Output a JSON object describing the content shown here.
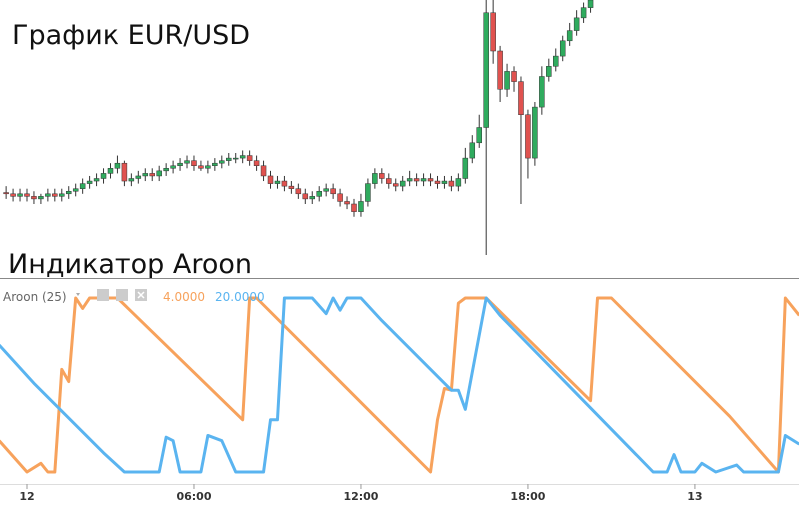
{
  "chart_data": [
    {
      "type": "candlestick",
      "title": "График EUR/USD",
      "up_color": "#2fab5e",
      "down_color": "#e0524f",
      "xlim": [
        -0.97,
        27.74
      ],
      "ylim": [
        0,
        100
      ],
      "x": [
        -0.75,
        -0.5,
        -0.25,
        0,
        0.25,
        0.5,
        0.75,
        1,
        1.25,
        1.5,
        1.75,
        2,
        2.25,
        2.5,
        2.75,
        3,
        3.25,
        3.5,
        3.75,
        4,
        4.25,
        4.5,
        4.75,
        5,
        5.25,
        5.5,
        5.75,
        6,
        6.25,
        6.5,
        6.75,
        7,
        7.25,
        7.5,
        7.75,
        8,
        8.25,
        8.5,
        8.75,
        9,
        9.25,
        9.5,
        9.75,
        10,
        10.25,
        10.5,
        10.75,
        11,
        11.25,
        11.5,
        11.75,
        12,
        12.25,
        12.5,
        12.75,
        13,
        13.25,
        13.5,
        13.75,
        14,
        14.25,
        14.5,
        14.75,
        15,
        15.25,
        15.5,
        15.75,
        16,
        16.25,
        16.5,
        16.75,
        17,
        17.25,
        17.5,
        17.75,
        18,
        18.25,
        18.5,
        18.75,
        19,
        19.25,
        19.5,
        19.75,
        20,
        20.25
      ],
      "open": [
        24.5,
        24,
        23,
        24,
        23,
        22,
        23,
        24,
        23,
        24,
        25,
        26,
        28,
        29,
        30,
        32,
        34,
        36,
        29,
        30,
        31,
        32,
        31,
        33,
        34,
        35,
        36,
        37,
        35,
        34,
        35,
        36,
        37,
        38,
        38,
        39,
        37,
        35,
        31,
        28,
        29,
        27,
        26,
        24,
        22,
        23,
        25,
        26,
        24,
        21,
        20,
        17,
        21,
        28,
        32,
        30,
        28,
        27,
        29,
        30,
        29,
        30,
        29,
        28,
        29,
        27,
        30,
        38,
        44,
        50,
        95,
        80,
        65,
        72,
        68,
        55,
        38,
        58,
        70,
        74,
        78,
        84,
        88,
        93,
        97
      ],
      "high": [
        27,
        26,
        26,
        26,
        25,
        24,
        26,
        26,
        26,
        27,
        28,
        30,
        31,
        32,
        34,
        36,
        39,
        37,
        32,
        33,
        34,
        34,
        35,
        36,
        37,
        38,
        39,
        39,
        37,
        37,
        38,
        39,
        40,
        40,
        41,
        41,
        39,
        37,
        33,
        31,
        31,
        29,
        28,
        26,
        25,
        27,
        28,
        28,
        26,
        23,
        22,
        24,
        30,
        34,
        34,
        32,
        30,
        31,
        33,
        32,
        32,
        32,
        31,
        31,
        31,
        32,
        42,
        47,
        55,
        100,
        100,
        82,
        75,
        74,
        70,
        57,
        60,
        74,
        77,
        81,
        86,
        91,
        96,
        99,
        101
      ],
      "low": [
        22,
        21,
        21,
        21,
        20,
        20,
        21,
        21,
        21,
        22,
        23,
        24,
        26,
        27,
        28,
        30,
        32,
        27,
        27,
        28,
        29,
        29,
        29,
        31,
        32,
        33,
        34,
        33,
        33,
        32,
        33,
        34,
        35,
        36,
        36,
        35,
        33,
        29,
        26,
        26,
        25,
        24,
        22,
        20,
        20,
        21,
        23,
        22,
        19,
        18,
        15,
        15,
        19,
        26,
        28,
        26,
        25,
        25,
        27,
        27,
        27,
        27,
        26,
        26,
        25,
        25,
        28,
        36,
        42,
        0,
        75,
        60,
        62,
        64,
        20,
        30,
        35,
        55,
        68,
        72,
        76,
        82,
        86,
        91,
        95
      ],
      "close": [
        24,
        23,
        24,
        23,
        22,
        23,
        24,
        23,
        24,
        25,
        26,
        28,
        29,
        30,
        32,
        34,
        36,
        29,
        30,
        31,
        32,
        31,
        33,
        34,
        35,
        36,
        37,
        35,
        34,
        35,
        36,
        37,
        38,
        38,
        39,
        37,
        35,
        31,
        28,
        29,
        27,
        26,
        24,
        22,
        23,
        25,
        26,
        24,
        21,
        20,
        17,
        21,
        28,
        32,
        30,
        28,
        27,
        29,
        30,
        29,
        30,
        29,
        28,
        29,
        27,
        30,
        38,
        44,
        50,
        95,
        80,
        65,
        72,
        68,
        55,
        38,
        58,
        70,
        74,
        78,
        84,
        88,
        93,
        97,
        100
      ]
    },
    {
      "type": "line",
      "title": "Индикатор Aroon",
      "indicator_label": "Aroon (25)",
      "xlim": [
        -0.97,
        27.74
      ],
      "ylim": [
        0,
        100
      ],
      "xticks": [
        {
          "value": 0,
          "label": "12"
        },
        {
          "value": 6,
          "label": "06:00"
        },
        {
          "value": 12,
          "label": "12:00"
        },
        {
          "value": 18,
          "label": "18:00"
        },
        {
          "value": 24,
          "label": "13"
        }
      ],
      "series": [
        {
          "label": "4.0000",
          "color": "#f7a25c",
          "x": [
            -1,
            0,
            0.5,
            0.75,
            1,
            1.25,
            1.5,
            1.75,
            2,
            2.25,
            3.25,
            7.75,
            8,
            8.25,
            14.5,
            14.75,
            15,
            15.25,
            15.5,
            15.75,
            16.5,
            20.25,
            20.5,
            21,
            25.25,
            27,
            27.25,
            27.75
          ],
          "values": [
            18,
            0,
            5,
            0,
            0,
            59,
            52,
            100,
            94,
            100,
            100,
            30,
            100,
            100,
            0,
            30,
            48,
            47,
            97,
            100,
            100,
            41,
            100,
            100,
            32,
            0,
            100,
            90
          ]
        },
        {
          "label": "20.0000",
          "color": "#5ab4f0",
          "x": [
            -1,
            0.25,
            2.75,
            3.5,
            4.75,
            5,
            5.25,
            5.5,
            6.25,
            6.5,
            7,
            7.5,
            8.5,
            8.75,
            9,
            9.25,
            10.25,
            10.75,
            11,
            11.25,
            11.5,
            12,
            12.75,
            15.25,
            15.5,
            15.75,
            16.5,
            17,
            22.5,
            23,
            23.25,
            23.5,
            24,
            24.25,
            24.75,
            25.5,
            25.75,
            27,
            27.25,
            27.75
          ],
          "values": [
            73,
            51,
            11,
            0,
            0,
            20,
            18,
            0,
            0,
            21,
            18,
            0,
            0,
            30,
            30,
            100,
            100,
            91,
            100,
            93,
            100,
            100,
            87,
            47,
            47,
            36,
            100,
            90,
            0,
            0,
            10,
            0,
            0,
            5,
            0,
            4,
            0,
            0,
            21,
            16
          ]
        }
      ]
    }
  ]
}
